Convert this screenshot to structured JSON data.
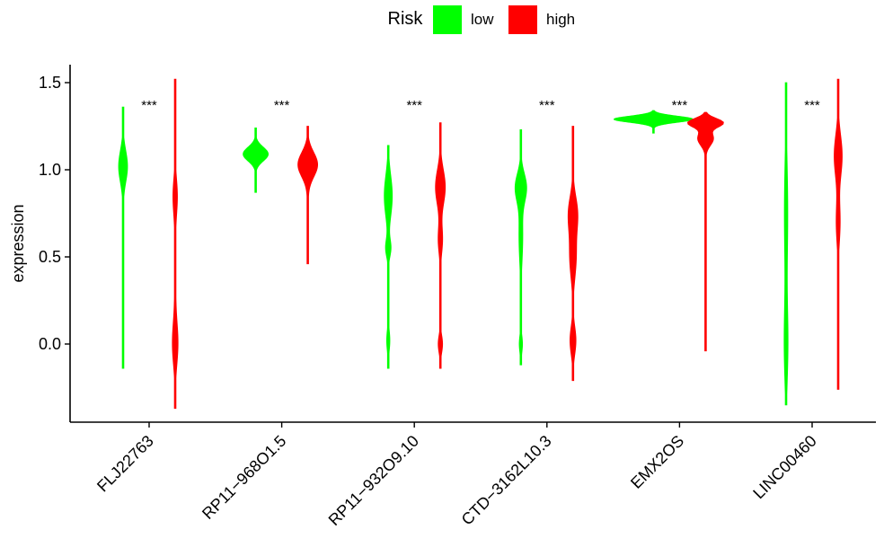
{
  "chart_data": {
    "type": "violin",
    "xlabel": "",
    "ylabel": "expression",
    "ylim": [
      -0.45,
      1.62
    ],
    "yticks": [
      0.0,
      0.5,
      1.0,
      1.5
    ],
    "ytick_labels": [
      "0.0",
      "0.5",
      "1.0",
      "1.5"
    ],
    "legend": {
      "title": "Risk",
      "position": "top",
      "entries": [
        {
          "label": "low",
          "color": "#00FF00"
        },
        {
          "label": "high",
          "color": "#FF0000"
        }
      ]
    },
    "grid": false,
    "categories": [
      "FLJ22763",
      "RP11−968O1.5",
      "RP11−932O9.10",
      "CTD−3162L10.3",
      "EMX2OS",
      "LINC00460"
    ],
    "significance": [
      "***",
      "***",
      "***",
      "***",
      "***",
      "***"
    ],
    "series": [
      {
        "name": "low",
        "color": "#00FF00",
        "distributions": [
          {
            "min": -0.14,
            "max": 1.36,
            "mode": 1.02,
            "modes": [
              [
                1.02,
                0.09,
                0.9
              ],
              [
                0.5,
                0.2,
                0.12
              ]
            ],
            "maxw": 5
          },
          {
            "min": 0.87,
            "max": 1.24,
            "mode": 1.09,
            "modes": [
              [
                1.09,
                0.04,
                1.0
              ]
            ],
            "maxw": 14
          },
          {
            "min": -0.14,
            "max": 1.14,
            "mode": 0.85,
            "modes": [
              [
                0.85,
                0.12,
                1.0
              ],
              [
                0.55,
                0.05,
                0.65
              ],
              [
                0.02,
                0.06,
                0.4
              ]
            ],
            "maxw": 4.5
          },
          {
            "min": -0.12,
            "max": 1.23,
            "mode": 0.9,
            "modes": [
              [
                0.9,
                0.08,
                1.0
              ],
              [
                0.62,
                0.15,
                0.35
              ],
              [
                0.0,
                0.05,
                0.3
              ]
            ],
            "maxw": 6.5
          },
          {
            "min": 1.21,
            "max": 1.34,
            "mode": 1.29,
            "modes": [
              [
                1.29,
                0.018,
                1.0
              ]
            ],
            "maxw": 44
          },
          {
            "min": -0.35,
            "max": 1.5,
            "mode": 0.0,
            "modes": [
              [
                0.0,
                0.22,
                0.55
              ],
              [
                0.75,
                0.3,
                0.5
              ]
            ],
            "maxw": 2.2
          }
        ]
      },
      {
        "name": "high",
        "color": "#FF0000",
        "distributions": [
          {
            "min": -0.37,
            "max": 1.52,
            "mode": 0.0,
            "modes": [
              [
                0.0,
                0.12,
                1.0
              ],
              [
                0.85,
                0.1,
                0.8
              ],
              [
                0.4,
                0.25,
                0.25
              ]
            ],
            "maxw": 3.2
          },
          {
            "min": 0.46,
            "max": 1.25,
            "mode": 1.03,
            "modes": [
              [
                1.03,
                0.07,
                1.0
              ],
              [
                0.7,
                0.15,
                0.08
              ]
            ],
            "maxw": 11
          },
          {
            "min": -0.14,
            "max": 1.27,
            "mode": 0.9,
            "modes": [
              [
                0.9,
                0.1,
                1.0
              ],
              [
                0.6,
                0.08,
                0.45
              ],
              [
                0.0,
                0.05,
                0.45
              ]
            ],
            "maxw": 5.5
          },
          {
            "min": -0.21,
            "max": 1.25,
            "mode": 0.75,
            "modes": [
              [
                0.75,
                0.1,
                0.9
              ],
              [
                0.5,
                0.12,
                0.65
              ],
              [
                0.02,
                0.08,
                0.6
              ]
            ],
            "maxw": 5.5
          },
          {
            "min": -0.04,
            "max": 1.33,
            "mode": 1.27,
            "modes": [
              [
                1.27,
                0.025,
                1.0
              ],
              [
                1.18,
                0.04,
                0.45
              ],
              [
                0.8,
                0.2,
                0.04
              ]
            ],
            "maxw": 20
          },
          {
            "min": -0.26,
            "max": 1.52,
            "mode": 1.08,
            "modes": [
              [
                1.08,
                0.12,
                1.0
              ],
              [
                0.7,
                0.12,
                0.5
              ]
            ],
            "maxw": 4.5
          }
        ]
      }
    ]
  }
}
